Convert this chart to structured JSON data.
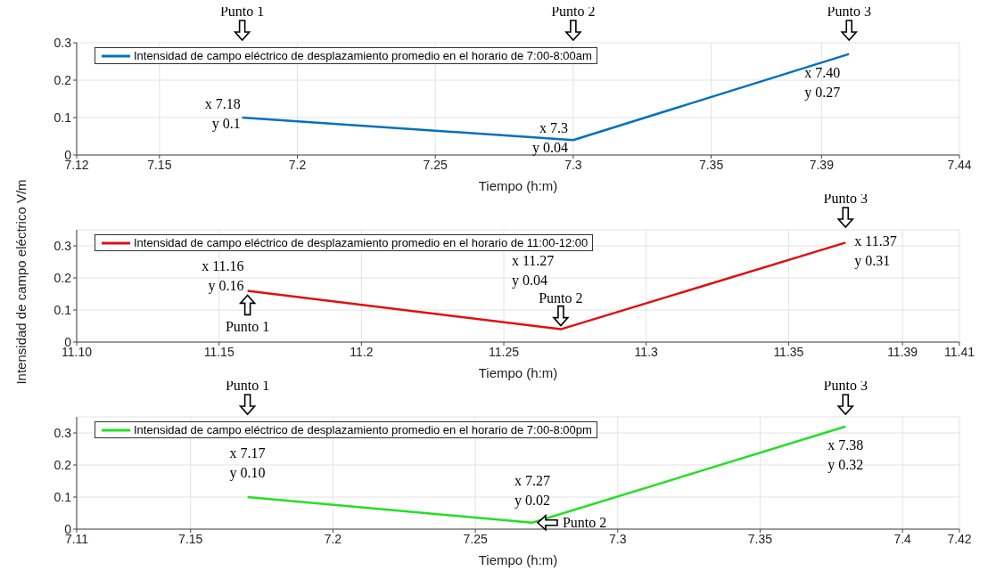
{
  "chart_data": [
    {
      "type": "line",
      "xlabel": "Tiempo (h:m)",
      "x": [
        7.18,
        7.3,
        7.4
      ],
      "series": [
        {
          "name": "Intensidad de campo eléctrico de desplazamiento promedio en el horario de 7:00-8:00am",
          "color": "#0072bd",
          "values": [
            0.1,
            0.04,
            0.27
          ]
        }
      ],
      "xlim": [
        7.12,
        7.44
      ],
      "xticks": [
        7.12,
        7.15,
        7.2,
        7.25,
        7.3,
        7.35,
        7.39,
        7.44
      ],
      "ylim": [
        0,
        0.3
      ],
      "yticks": [
        0,
        0.1,
        0.2,
        0.3
      ],
      "grid": true,
      "legend": "top left",
      "marker": "none",
      "annotations": [
        {
          "text": "x 7.18\ny 0.1",
          "x": 7.18,
          "y": 0.1
        },
        "Punto 1",
        {
          "text": "x 7.3\ny 0.04",
          "x": 7.3,
          "y": 0.04
        },
        "Punto 2",
        {
          "text": "x 7.40\ny 0.27",
          "x": 7.4,
          "y": 0.27
        },
        {
          "text": "Punto 3",
          "x": 7.4,
          "y": 0.27
        }
      ]
    },
    {
      "type": "line",
      "xlabel": "Tiempo (h:m)",
      "ylabel": "Intensidad de campo eléctrico V/m",
      "x": [
        11.16,
        11.27,
        11.37
      ],
      "series": [
        {
          "name": "Intensidad de campo eléctrico de desplazamiento promedio en el horario de 11:00-12:00",
          "color": "#e01010",
          "values": [
            0.16,
            0.04,
            0.31
          ]
        }
      ],
      "xlim": [
        11.1,
        11.41
      ],
      "xticks": [
        {
          "value": 11.1,
          "label": "11.10"
        },
        11.15,
        11.2,
        11.25,
        11.3,
        11.35,
        11.39,
        11.41
      ],
      "ylim": [
        0,
        0.35
      ],
      "yticks": [
        0,
        0.1,
        0.2,
        0.3
      ],
      "grid": true,
      "legend": "top left",
      "marker": "none",
      "annotations": [
        {
          "text": "x 11.16\ny 0.16",
          "x": 11.16,
          "y": 0.16
        },
        {
          "text": "Punto 1",
          "x": 11.16,
          "y": 0.16
        },
        {
          "text": "x 11.27\ny 0.04",
          "x": 11.27,
          "y": 0.04
        },
        {
          "text": "Punto 2",
          "x": 11.27,
          "y": 0.04
        },
        {
          "text": "x 11.37\ny 0.31",
          "x": 11.37,
          "y": 0.31
        },
        {
          "text": "Punto 3",
          "x": 11.37,
          "y": 0.31
        }
      ]
    },
    {
      "type": "line",
      "xlabel": "Tiempo (h:m)",
      "x": [
        7.17,
        7.27,
        7.38
      ],
      "series": [
        {
          "name": "Intensidad de campo eléctrico de desplazamiento promedio en el horario de 7:00-8:00pm",
          "color": "#22e022",
          "values": [
            0.1,
            0.02,
            0.32
          ]
        }
      ],
      "xlim": [
        7.11,
        7.42
      ],
      "xticks": [
        7.11,
        7.15,
        7.2,
        7.25,
        7.3,
        7.35,
        7.4,
        7.42
      ],
      "ylim": [
        0,
        0.35
      ],
      "yticks": [
        0,
        0.1,
        0.2,
        0.3
      ],
      "grid": true,
      "legend": "top left",
      "marker": "none",
      "annotations": [
        {
          "text": "x 7.17\ny 0.10",
          "x": 7.17,
          "y": 0.1
        },
        "Punto 1",
        {
          "text": "x 7.27\ny 0.02",
          "x": 7.27,
          "y": 0.02
        },
        {
          "text": "Punto 2",
          "x": 7.27,
          "y": 0.02
        },
        {
          "text": "x 7.38\ny 0.32",
          "x": 7.38,
          "y": 0.32
        },
        {
          "text": "Punto 3",
          "x": 7.38,
          "y": 0.32
        }
      ]
    }
  ]
}
